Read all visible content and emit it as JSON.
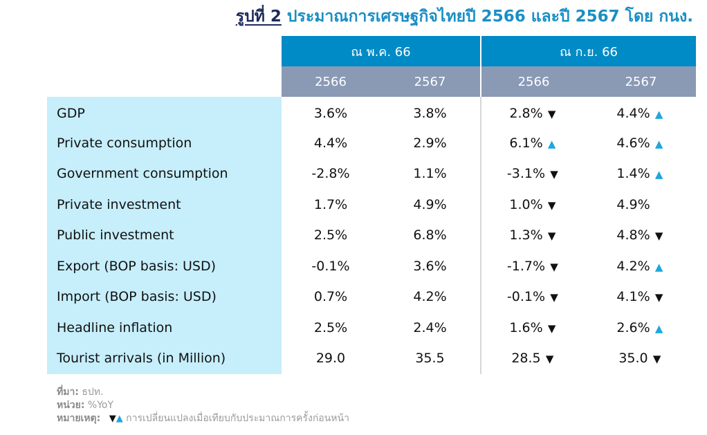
{
  "title": {
    "figure_label": "รูปที่ 2",
    "text": "ประมาณการเศรษฐกิจไทยปี 2566 และปี 2567 โดย กนง."
  },
  "chart_data": {
    "type": "table",
    "column_groups": [
      "ณ พ.ค. 66",
      "ณ ก.ย. 66"
    ],
    "years": [
      "2566",
      "2567",
      "2566",
      "2567"
    ],
    "rows": [
      {
        "label": "GDP",
        "values": [
          "3.6%",
          "3.8%",
          "2.8%",
          "4.4%"
        ],
        "changes": [
          "down",
          "up"
        ]
      },
      {
        "label": "Private consumption",
        "values": [
          "4.4%",
          "2.9%",
          "6.1%",
          "4.6%"
        ],
        "changes": [
          "up",
          "up"
        ]
      },
      {
        "label": "Government consumption",
        "values": [
          "-2.8%",
          "1.1%",
          "-3.1%",
          "1.4%"
        ],
        "changes": [
          "down",
          "up"
        ]
      },
      {
        "label": "Private investment",
        "values": [
          "1.7%",
          "4.9%",
          "1.0%",
          "4.9%"
        ],
        "changes": [
          "down",
          ""
        ]
      },
      {
        "label": "Public investment",
        "values": [
          "2.5%",
          "6.8%",
          "1.3%",
          "4.8%"
        ],
        "changes": [
          "down",
          "down"
        ]
      },
      {
        "label": "Export (BOP basis: USD)",
        "values": [
          "-0.1%",
          "3.6%",
          "-1.7%",
          "4.2%"
        ],
        "changes": [
          "down",
          "up"
        ]
      },
      {
        "label": "Import (BOP basis: USD)",
        "values": [
          "0.7%",
          "4.2%",
          "-0.1%",
          "4.1%"
        ],
        "changes": [
          "down",
          "down"
        ]
      },
      {
        "label": "Headline inflation",
        "values": [
          "2.5%",
          "2.4%",
          "1.6%",
          "2.6%"
        ],
        "changes": [
          "down",
          "up"
        ]
      },
      {
        "label": "Tourist arrivals (in Million)",
        "values": [
          "29.0",
          "35.5",
          "28.5",
          "35.0"
        ],
        "changes": [
          "down",
          "down"
        ]
      }
    ],
    "colors": {
      "group_header": "#008ac6",
      "year_header": "#8a9ab5",
      "label_column": "#c6eefb",
      "arrow_up": "#1ea7dd",
      "arrow_down": "#111111"
    }
  },
  "notes": {
    "source_label": "ที่มา:",
    "source_value": "ธปท.",
    "unit_label": "หน่วย:",
    "unit_value": "%YoY",
    "remark_label": "หมายเหตุ:",
    "remark_text": "การเปลี่ยนแปลงเมื่อเทียบกับประมาณการครั้งก่อนหน้า"
  }
}
